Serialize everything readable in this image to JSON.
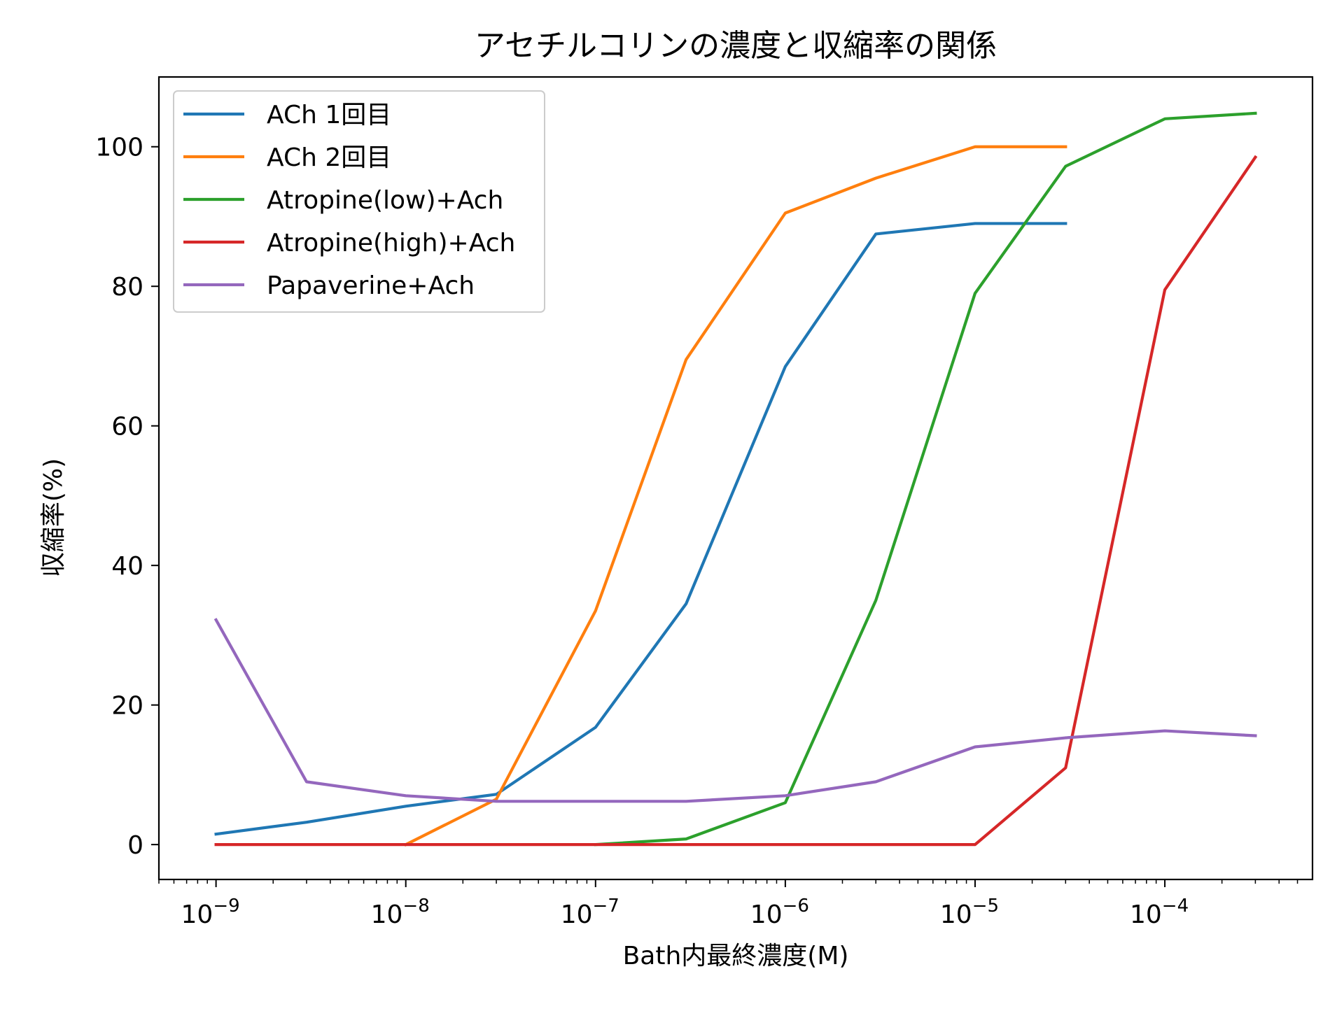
{
  "chart_data": {
    "type": "line",
    "title": "アセチルコリンの濃度と収縮率の関係",
    "xlabel": "Bath内最終濃度(M)",
    "ylabel": "収縮率(%)",
    "x_scale": "log",
    "x_range": [
      5e-10,
      0.0006
    ],
    "y_range": [
      -5,
      110
    ],
    "x_ticks": [
      {
        "value": 1e-09,
        "base": "10",
        "exp": "−9"
      },
      {
        "value": 1e-08,
        "base": "10",
        "exp": "−8"
      },
      {
        "value": 1e-07,
        "base": "10",
        "exp": "−7"
      },
      {
        "value": 1e-06,
        "base": "10",
        "exp": "−6"
      },
      {
        "value": 1e-05,
        "base": "10",
        "exp": "−5"
      },
      {
        "value": 0.0001,
        "base": "10",
        "exp": "−4"
      }
    ],
    "y_ticks": [
      0,
      20,
      40,
      60,
      80,
      100
    ],
    "grid": false,
    "legend_position": "top-left",
    "series": [
      {
        "name": "ACh 1回目",
        "color": "#1f77b4",
        "x": [
          1e-09,
          3e-09,
          1e-08,
          3e-08,
          1e-07,
          3e-07,
          1e-06,
          3e-06,
          1e-05,
          3e-05
        ],
        "y": [
          1.5,
          3.2,
          5.5,
          7.2,
          16.8,
          34.5,
          68.5,
          87.5,
          89.0,
          89.0
        ]
      },
      {
        "name": "ACh 2回目",
        "color": "#ff7f0e",
        "x": [
          1e-08,
          3e-08,
          1e-07,
          3e-07,
          1e-06,
          3e-06,
          1e-05,
          3e-05
        ],
        "y": [
          0.0,
          6.5,
          33.5,
          69.5,
          90.5,
          95.5,
          100.0,
          100.0
        ]
      },
      {
        "name": "Atropine(low)+Ach",
        "color": "#2ca02c",
        "x": [
          1e-07,
          3e-07,
          1e-06,
          3e-06,
          1e-05,
          3e-05,
          0.0001,
          0.0003
        ],
        "y": [
          0.0,
          0.8,
          6.0,
          35.0,
          79.0,
          97.2,
          104.0,
          104.8
        ]
      },
      {
        "name": "Atropine(high)+Ach",
        "color": "#d62728",
        "x": [
          1e-09,
          3e-09,
          1e-08,
          3e-08,
          1e-07,
          3e-07,
          1e-06,
          3e-06,
          1e-05,
          3e-05,
          0.0001,
          0.0003
        ],
        "y": [
          0,
          0,
          0,
          0,
          0,
          0,
          0,
          0,
          0,
          11.0,
          79.5,
          98.5
        ]
      },
      {
        "name": "Papaverine+Ach",
        "color": "#9467bd",
        "x": [
          1e-09,
          3e-09,
          1e-08,
          3e-08,
          1e-07,
          3e-07,
          1e-06,
          3e-06,
          1e-05,
          3e-05,
          0.0001,
          0.0003
        ],
        "y": [
          32.2,
          9.0,
          7.0,
          6.2,
          6.2,
          6.2,
          7.0,
          9.0,
          14.0,
          15.3,
          16.3,
          15.6
        ]
      }
    ]
  }
}
